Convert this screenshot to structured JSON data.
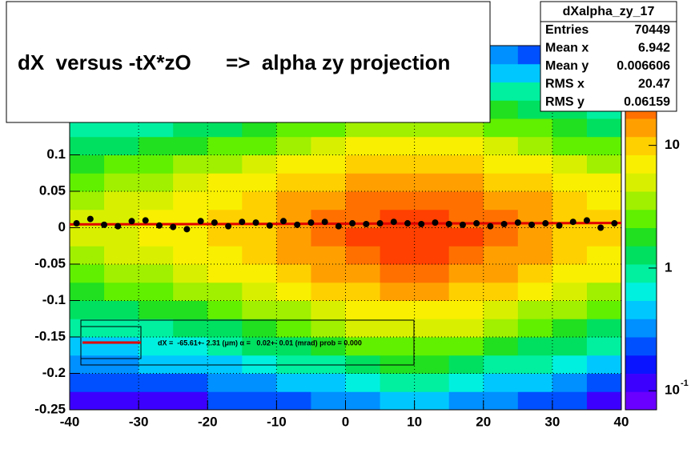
{
  "chart_data": {
    "type": "heatmap",
    "title": "dX  versus -tX*zO      =>  alpha zy projection",
    "x_bins": [
      -40,
      -35,
      -30,
      -25,
      -20,
      -15,
      -10,
      -5,
      0,
      5,
      10,
      15,
      20,
      25,
      30,
      35,
      40
    ],
    "y_bins": [
      -0.25,
      -0.225,
      -0.2,
      -0.175,
      -0.15,
      -0.125,
      -0.1,
      -0.075,
      -0.05,
      -0.025,
      0,
      0.025,
      0.05,
      0.075,
      0.1,
      0.125,
      0.15,
      0.175,
      0.2,
      0.225,
      0.25
    ],
    "z": [
      [
        0.1,
        0.1,
        0.1,
        0.1,
        0.2,
        0.2,
        0.2,
        0.3,
        0.3,
        0.4,
        0.4,
        0.3,
        0.3,
        0.2,
        0.2,
        0.1
      ],
      [
        0.2,
        0.2,
        0.2,
        0.2,
        0.3,
        0.3,
        0.4,
        0.5,
        0.7,
        0.8,
        0.8,
        0.7,
        0.5,
        0.4,
        0.3,
        0.2
      ],
      [
        0.3,
        0.3,
        0.4,
        0.4,
        0.5,
        0.6,
        0.8,
        1,
        1.4,
        1.6,
        1.6,
        1.4,
        1,
        0.8,
        0.6,
        0.4
      ],
      [
        0.5,
        0.5,
        0.6,
        0.7,
        0.9,
        1.1,
        1.5,
        2,
        2.6,
        3,
        3,
        2.6,
        2,
        1.5,
        1.1,
        0.8
      ],
      [
        0.8,
        0.9,
        1,
        1.2,
        1.5,
        2,
        2.6,
        3.4,
        4.5,
        5,
        5,
        4.5,
        3.5,
        2.6,
        2,
        1.5
      ],
      [
        1.3,
        1.5,
        1.7,
        2,
        2.5,
        3.2,
        4.2,
        5.5,
        7,
        8,
        8,
        7,
        5.5,
        4.2,
        3.2,
        2.5
      ],
      [
        2,
        2.3,
        2.7,
        3.2,
        4,
        5,
        6.5,
        8.5,
        11,
        12,
        12,
        11,
        8.5,
        6.5,
        5,
        4
      ],
      [
        3,
        3.5,
        4,
        5,
        6,
        7.5,
        9.5,
        12,
        16,
        18,
        18,
        16,
        12,
        9.5,
        7.5,
        6
      ],
      [
        4,
        4.5,
        5.5,
        6.5,
        8,
        10,
        12,
        16,
        21,
        24,
        24,
        21,
        16,
        12,
        10,
        8
      ],
      [
        5,
        5.5,
        6.5,
        7.5,
        9,
        11,
        14,
        18,
        24,
        28,
        28,
        24,
        18,
        14,
        11,
        9
      ],
      [
        5,
        5.5,
        6.5,
        7.5,
        9,
        11,
        14,
        18,
        23,
        27,
        27,
        23,
        18,
        14,
        11,
        9
      ],
      [
        4,
        4.5,
        5.5,
        6.5,
        8,
        10,
        12,
        15,
        19,
        22,
        22,
        19,
        15,
        12,
        10,
        8
      ],
      [
        3,
        3.5,
        4,
        5,
        6,
        7,
        9,
        11,
        14,
        16,
        16,
        14,
        11,
        9,
        7,
        6
      ],
      [
        2,
        2.3,
        2.7,
        3.2,
        4,
        4.8,
        6,
        7.5,
        9.5,
        11,
        11,
        9.5,
        7.5,
        6,
        4.8,
        4
      ],
      [
        1.3,
        1.5,
        1.7,
        2,
        2.5,
        3,
        3.8,
        4.8,
        6,
        7,
        7,
        6,
        4.8,
        3.8,
        3,
        2.5
      ],
      [
        0.8,
        0.9,
        1,
        1.2,
        1.5,
        1.8,
        2.3,
        2.9,
        3.6,
        4,
        4,
        3.6,
        2.9,
        2.3,
        1.8,
        1.5
      ],
      [
        0.5,
        0.5,
        0.6,
        0.7,
        0.9,
        1.1,
        1.4,
        1.7,
        2.1,
        2.4,
        2.4,
        2.1,
        1.7,
        1.4,
        1.1,
        0.9
      ],
      [
        0.3,
        0.3,
        0.4,
        0.4,
        0.5,
        0.6,
        0.8,
        1,
        1.2,
        1.4,
        1.4,
        1.2,
        1,
        0.8,
        0.6,
        0.5
      ],
      [
        0.2,
        0.2,
        0.2,
        0.2,
        0.3,
        0.3,
        0.4,
        0.5,
        0.6,
        0.7,
        0.7,
        0.6,
        0.5,
        0.4,
        0.3,
        0.3
      ],
      [
        0.1,
        0.1,
        0.1,
        0.1,
        0.2,
        0.2,
        0.2,
        0.3,
        0.3,
        0.4,
        0.4,
        0.3,
        0.3,
        0.2,
        0.2,
        0.2
      ]
    ],
    "zlim": [
      0.07,
      65
    ],
    "log_z": true,
    "zticks": [
      10,
      1,
      {
        "value": 0.1,
        "label": "10",
        "exponent": "-1"
      }
    ],
    "palette": [
      "#6a00ff",
      "#3c00ff",
      "#0a14ff",
      "#0050ff",
      "#0090ff",
      "#00c8ff",
      "#00f0e0",
      "#00f0a0",
      "#00e060",
      "#20e020",
      "#60f000",
      "#a0f000",
      "#d8f000",
      "#f8f000",
      "#ffd000",
      "#ffa000",
      "#ff7000",
      "#ff4000",
      "#f01000",
      "#d00000"
    ],
    "xlim": [
      -40,
      40
    ],
    "ylim": [
      -0.25,
      0.25
    ],
    "xticks": [
      -40,
      -30,
      -20,
      -10,
      0,
      10,
      20,
      30,
      40
    ],
    "yticks": [
      -0.25,
      -0.2,
      -0.15,
      -0.1,
      -0.05,
      0,
      0.05,
      0.1
    ],
    "grid": true,
    "profile": {
      "color": "#000000",
      "x": [
        -39,
        -37,
        -35,
        -33,
        -31,
        -29,
        -27,
        -25,
        -23,
        -21,
        -19,
        -17,
        -15,
        -13,
        -11,
        -9,
        -7,
        -5,
        -3,
        -1,
        1,
        3,
        5,
        7,
        9,
        11,
        13,
        15,
        17,
        19,
        21,
        23,
        25,
        27,
        29,
        31,
        33,
        35,
        37,
        39
      ],
      "values": [
        0.006,
        0.012,
        0.004,
        0.002,
        0.009,
        0.01,
        0.003,
        0.001,
        -0.002,
        0.009,
        0.007,
        0.002,
        0.008,
        0.007,
        0.003,
        0.009,
        0.004,
        0.007,
        0.008,
        0.002,
        0.006,
        0.005,
        0.006,
        0.008,
        0.006,
        0.005,
        0.007,
        0.005,
        0.004,
        0.006,
        0.002,
        0.005,
        0.007,
        0.004,
        0.006,
        0.003,
        0.008,
        0.01,
        0.0,
        0.006
      ]
    },
    "fit": {
      "name": "dX =  -65.61+- 2.31 (μm) α =   0.02+- 0.01 (mrad) prob = 0.000",
      "color": "#e00000",
      "x": [
        -40,
        40
      ],
      "values": [
        0.0045,
        0.0065
      ]
    },
    "stats": {
      "title": "dXalpha_zy_17",
      "rows": [
        [
          "Entries",
          "70449"
        ],
        [
          "Mean x",
          "6.942"
        ],
        [
          "Mean y",
          "0.006606"
        ],
        [
          "RMS x",
          "20.47"
        ],
        [
          "RMS y",
          "0.06159"
        ]
      ]
    }
  }
}
